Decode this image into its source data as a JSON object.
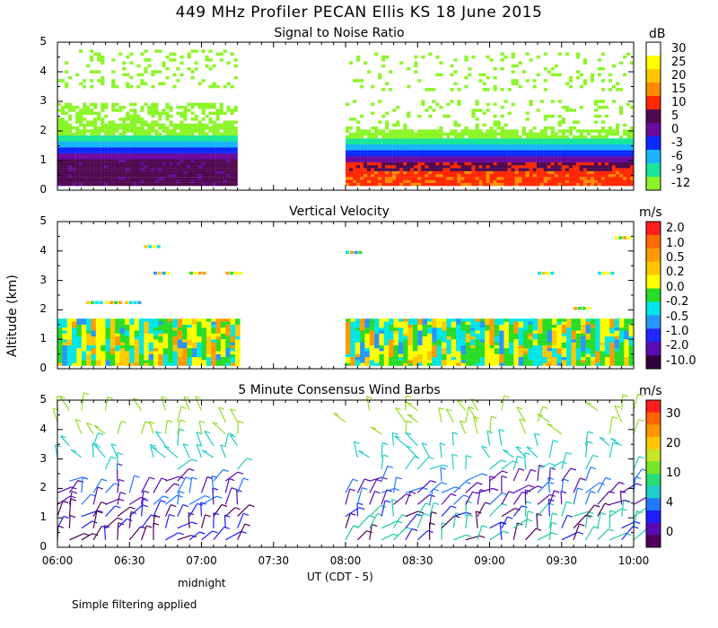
{
  "title": "449 MHz Profiler PECAN Ellis KS 18 June 2015",
  "y_axis_label": "Altitude (km)",
  "x_axis_label": "UT  (CDT - 5)",
  "midnight_label": "midnight",
  "footer": "Simple filtering applied",
  "x_ticks": [
    "06:00",
    "06:30",
    "07:00",
    "07:30",
    "08:00",
    "08:30",
    "09:00",
    "09:30",
    "10:00"
  ],
  "y_ticks": [
    "0",
    "1",
    "2",
    "3",
    "4",
    "5"
  ],
  "panels": [
    {
      "title": "Signal to Noise Ratio",
      "unit": "dB",
      "colorbar": {
        "labels": [
          "30",
          "25",
          "20",
          "15",
          "10",
          "5",
          "0",
          "-3",
          "-6",
          "-9",
          "-12"
        ],
        "colors": [
          "#ffffff",
          "#ffff00",
          "#ffc800",
          "#ff8c00",
          "#ff2800",
          "#500a50",
          "#6a0aa0",
          "#0a2aff",
          "#19b4ff",
          "#19e69a",
          "#8cf52a"
        ]
      }
    },
    {
      "title": "Vertical Velocity",
      "unit": "m/s",
      "colorbar": {
        "labels": [
          "2.0",
          "1.0",
          "0.5",
          "0.2",
          "0.0",
          "-0.2",
          "-0.5",
          "-1.0",
          "-2.0",
          "-10.0"
        ],
        "colors": [
          "#ff1e1e",
          "#ff6a00",
          "#ff9b00",
          "#ffc800",
          "#ffff00",
          "#28dc28",
          "#00e6e6",
          "#2896ff",
          "#1e28ff",
          "#5a0ab4",
          "#32003c"
        ]
      }
    },
    {
      "title": "5 Minute Consensus Wind Barbs",
      "unit": "m/s",
      "colorbar": {
        "labels": [
          "30",
          "20",
          "10",
          "4",
          "0"
        ],
        "colors": [
          "#ff1e1e",
          "#ff6400",
          "#ff9600",
          "#ffc800",
          "#c8e628",
          "#78e628",
          "#28dc78",
          "#1ecdc8",
          "#1e78ff",
          "#1e1eff",
          "#5a0ab4",
          "#50005a"
        ]
      }
    }
  ],
  "chart_data": [
    {
      "type": "heatmap",
      "title": "Signal to Noise Ratio",
      "unit": "dB",
      "x_range": [
        "06:00",
        "10:00"
      ],
      "ylim": [
        0,
        5
      ],
      "data_segments": [
        {
          "start": "06:00",
          "end": "07:15"
        },
        {
          "start": "08:00",
          "end": "10:00"
        }
      ],
      "layers_first_segment": [
        {
          "bottom_km": 0.2,
          "top_km": 1.2,
          "band": "0 to 5 dB"
        },
        {
          "bottom_km": 1.2,
          "top_km": 1.5,
          "band": "-3 dB"
        },
        {
          "bottom_km": 1.5,
          "top_km": 2.9,
          "band": "-6 to -12 dB"
        }
      ],
      "layers_second_segment": [
        {
          "bottom_km": 0.2,
          "top_km": 0.9,
          "band": "10 to 15 dB"
        },
        {
          "bottom_km": 0.9,
          "top_km": 1.4,
          "band": "0 to 5 dB"
        },
        {
          "bottom_km": 1.4,
          "top_km": 2.0,
          "band": "-3 to -12 dB"
        }
      ]
    },
    {
      "type": "heatmap",
      "title": "Vertical Velocity",
      "unit": "m/s",
      "x_range": [
        "06:00",
        "10:00"
      ],
      "ylim": [
        0,
        5
      ],
      "data_segments": [
        {
          "start": "06:00",
          "end": "07:15",
          "top_km": 1.7
        },
        {
          "start": "08:00",
          "end": "10:00",
          "top_km": 1.7
        }
      ],
      "dominant_range_m_s": [
        -1.0,
        0.5
      ]
    },
    {
      "type": "scatter",
      "title": "5 Minute Consensus Wind Barbs",
      "unit": "m/s",
      "x_range": [
        "06:00",
        "10:00"
      ],
      "ylim": [
        0,
        5
      ],
      "interval_minutes": 5,
      "speed_range_m_s": [
        0,
        30
      ],
      "data_segments": [
        {
          "start": "06:00",
          "end": "07:15",
          "max_km": 5.0
        },
        {
          "start": "08:00",
          "end": "10:00",
          "max_km": 5.0
        }
      ]
    }
  ]
}
